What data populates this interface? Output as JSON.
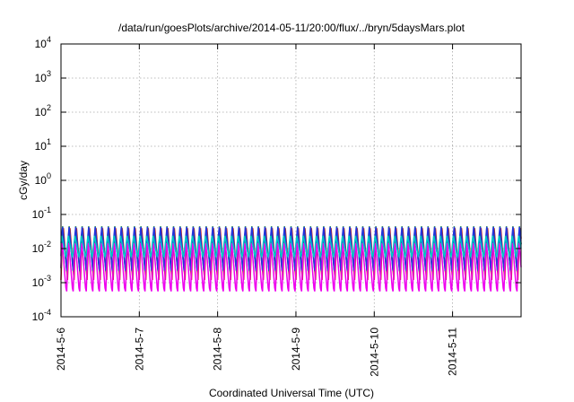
{
  "chart_data": {
    "type": "line",
    "title": "/data/run/goesPlots/archive/2014-05-11/20:00/flux/../bryn/5daysMars.plot",
    "xlabel": "Coordinated Universal Time (UTC)",
    "ylabel": "cGy/day",
    "yscale": "log",
    "ylim": [
      0.0001,
      10000
    ],
    "xlim": [
      "2014-5-6",
      "2014-5-11 21:00"
    ],
    "grid": true,
    "y_ticks": [
      {
        "base": "10",
        "exp": "-4"
      },
      {
        "base": "10",
        "exp": "-3"
      },
      {
        "base": "10",
        "exp": "-2"
      },
      {
        "base": "10",
        "exp": "-1"
      },
      {
        "base": "10",
        "exp": "0"
      },
      {
        "base": "10",
        "exp": "1"
      },
      {
        "base": "10",
        "exp": "2"
      },
      {
        "base": "10",
        "exp": "3"
      },
      {
        "base": "10",
        "exp": "4"
      }
    ],
    "x_ticks": [
      "2014-5-6",
      "2014-5-7",
      "2014-5-8",
      "2014-5-9",
      "2014-5-10",
      "2014-5-11"
    ],
    "oscillation_period_hours": 2,
    "series": [
      {
        "color": "#d11a1a",
        "peak": 0.06,
        "trough": 0.0012
      },
      {
        "color": "#22a022",
        "peak": 0.045,
        "trough": 0.0015
      },
      {
        "color": "#2233dd",
        "peak": 0.055,
        "trough": 0.002
      },
      {
        "color": "#ee00ee",
        "peak": 0.02,
        "trough": 0.0004
      },
      {
        "color": "#00c8c8",
        "peak": 0.025,
        "trough": 0.005
      }
    ]
  }
}
